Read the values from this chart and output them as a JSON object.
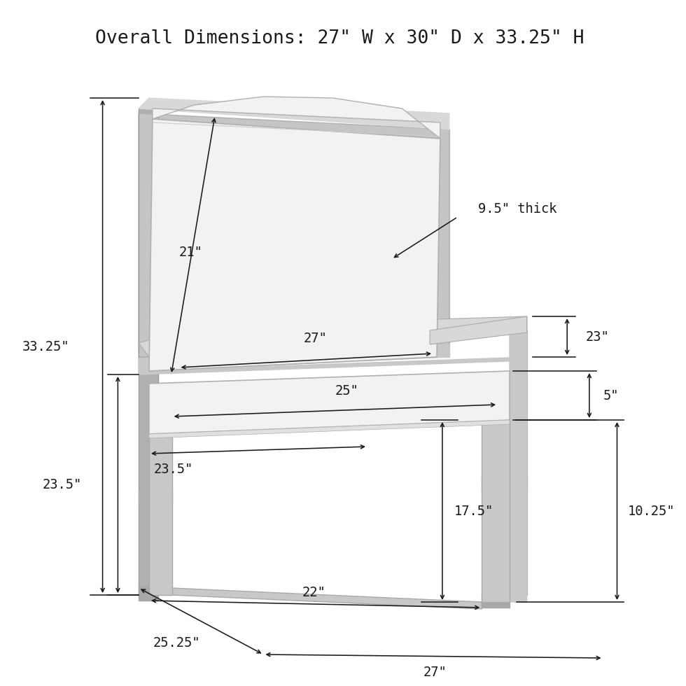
{
  "title": "Overall Dimensions: 27\" W x 30\" D x 33.25\" H",
  "title_fontsize": 19,
  "bg_color": "#ffffff",
  "line_color": "#1a1a1a",
  "text_color": "#1a1a1a",
  "chair_dark": "#b0b0b0",
  "chair_mid": "#c8c8c8",
  "chair_light": "#d8d8d8",
  "cushion_fill": "#f2f2f2",
  "cushion_edge": "#b0b0b0",
  "annotation_fontsize": 13.5
}
